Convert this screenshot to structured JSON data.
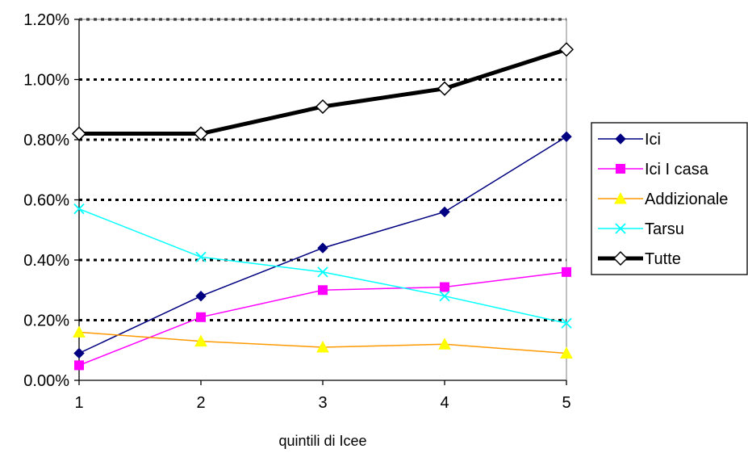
{
  "chart_data": {
    "type": "line",
    "title": "",
    "xlabel": "quintili di Icee",
    "ylabel": "",
    "x": [
      1,
      2,
      3,
      4,
      5
    ],
    "x_tick_labels": [
      "1",
      "2",
      "3",
      "4",
      "5"
    ],
    "ylim": [
      0,
      0.012
    ],
    "y_ticks": [
      0,
      0.002,
      0.004,
      0.006,
      0.008,
      0.01,
      0.012
    ],
    "y_tick_labels": [
      "0.00%",
      "0.20%",
      "0.40%",
      "0.60%",
      "0.80%",
      "1.00%",
      "1.20%"
    ],
    "grid": "horizontal dotted",
    "legend_position": "right",
    "series": [
      {
        "name": "Ici",
        "color": "#000080",
        "marker": "diamond",
        "values": [
          0.0009,
          0.0028,
          0.0044,
          0.0056,
          0.0081
        ]
      },
      {
        "name": "Ici I casa",
        "color": "#FF00FF",
        "marker": "square",
        "values": [
          0.0005,
          0.0021,
          0.003,
          0.0031,
          0.0036
        ]
      },
      {
        "name": "Addizionale",
        "color": "#FF9900",
        "marker_color": "#FFFF00",
        "marker": "triangle",
        "values": [
          0.0016,
          0.0013,
          0.0011,
          0.0012,
          0.0009
        ]
      },
      {
        "name": "Tarsu",
        "color": "#00FFFF",
        "marker": "x",
        "values": [
          0.0057,
          0.0041,
          0.0036,
          0.0028,
          0.0019
        ]
      },
      {
        "name": "Tutte",
        "color": "#000000",
        "marker": "open-diamond",
        "values": [
          0.0082,
          0.0082,
          0.0091,
          0.0097,
          0.011
        ]
      }
    ]
  }
}
